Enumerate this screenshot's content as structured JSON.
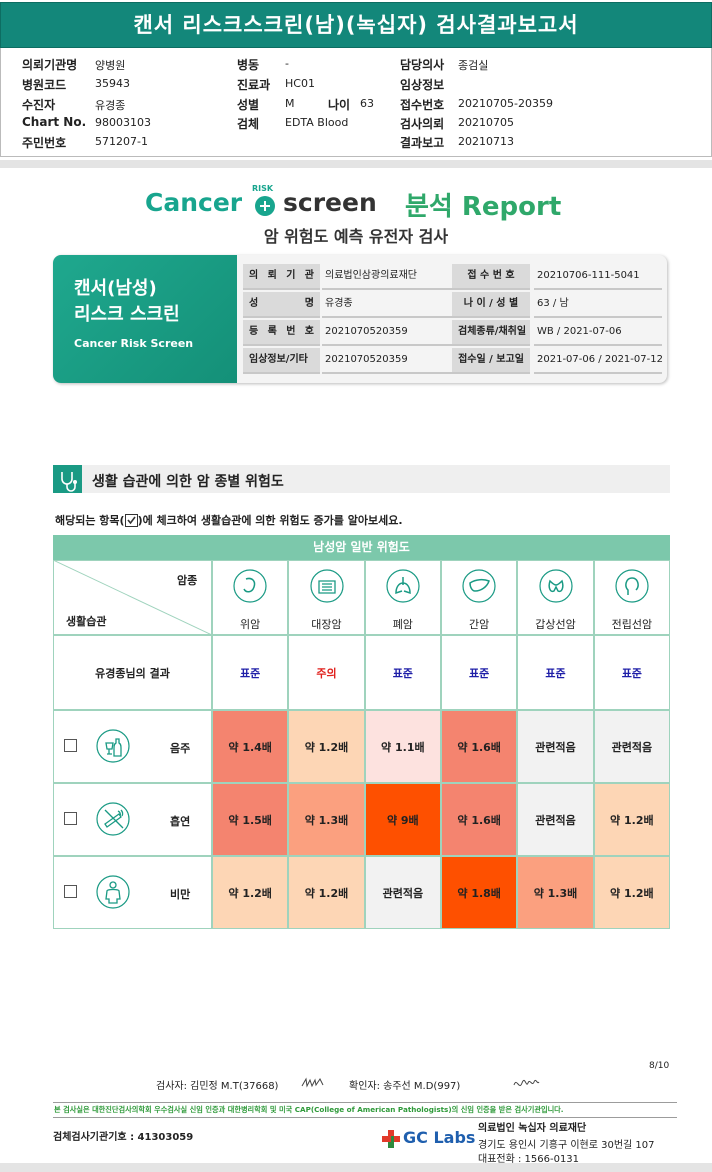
{
  "header": {
    "title": "캔서 리스크스크린(남)(녹십자) 검사결과보고서"
  },
  "patient_info": {
    "columns": [
      [
        {
          "label": "의뢰기관명",
          "value": "양병원"
        },
        {
          "label": "병원코드",
          "value": "35943"
        },
        {
          "label": "수진자",
          "value": "유경종"
        },
        {
          "label": "Chart No.",
          "value": "98003103"
        },
        {
          "label": "주민번호",
          "value": "571207-1"
        }
      ],
      [
        {
          "label": "병동",
          "value": "-"
        },
        {
          "label": "진료과",
          "value": "HC01"
        },
        {
          "label": "성별",
          "value": "M"
        },
        {
          "label": "나이",
          "value": "63"
        },
        {
          "label": "검체",
          "value": "EDTA Blood"
        }
      ],
      [
        {
          "label": "담당의사",
          "value": "종검실"
        },
        {
          "label": "임상정보"
        },
        {
          "label": "접수번호",
          "value": "20210705-20359"
        },
        {
          "label": "검사의뢰",
          "value": "20210705"
        },
        {
          "label": "결과보고",
          "value": "20210713"
        }
      ]
    ]
  },
  "logo": {
    "cancer": "Cancer",
    "risk": "RISK",
    "screen": "screen",
    "report": "분석 Report",
    "subtitle": "암 위험도 예측 유전자 검사"
  },
  "card": {
    "title_lines": [
      "캔서(남성)",
      "리스크 스크린"
    ],
    "english": "Cancer Risk Screen",
    "rows": [
      [
        "의 뢰 기 관",
        "의료법인삼광의료재단",
        "접 수 번 호",
        "20210706-111-5041"
      ],
      [
        "성 명",
        "유경종",
        "나 이 / 성 별",
        "63 / 남"
      ],
      [
        "등 록 번 호",
        "2021070520359",
        "검체종류/채취일",
        "WB / 2021-07-06"
      ],
      [
        "임상정보/기타",
        "2021070520359",
        "접수일 / 보고일",
        "2021-07-06 / 2021-07-12"
      ]
    ]
  },
  "section": {
    "title": "생활 습관에 의한 암 종별 위험도",
    "instruction_before": "해당되는 항목(",
    "instruction_after": ")에 체크하여 생활습관에 의한 위험도 증가를 알아보세요."
  },
  "risk_table": {
    "title": "남성암 일반 위험도",
    "corner_top": "암종",
    "corner_bottom": "생활습관",
    "cancers": [
      "위암",
      "대장암",
      "폐암",
      "간암",
      "갑상선암",
      "전립선암"
    ],
    "result_label": "유경종님의 결과",
    "results": [
      {
        "text": "표준",
        "color": "#1f1fa8"
      },
      {
        "text": "주의",
        "color": "#e0201c"
      },
      {
        "text": "표준",
        "color": "#1f1fa8"
      },
      {
        "text": "표준",
        "color": "#1f1fa8"
      },
      {
        "text": "표준",
        "color": "#1f1fa8"
      },
      {
        "text": "표준",
        "color": "#1f1fa8"
      }
    ],
    "rows": [
      {
        "habit": "음주",
        "cells": [
          {
            "text": "약 1.4배",
            "color": "#f4846f"
          },
          {
            "text": "약 1.2배",
            "color": "#fdd6b5"
          },
          {
            "text": "약 1.1배",
            "color": "#fde2df"
          },
          {
            "text": "약 1.6배",
            "color": "#f4846f"
          },
          {
            "text": "관련적음",
            "color": "#f2f2f2"
          },
          {
            "text": "관련적음",
            "color": "#f2f2f2"
          }
        ]
      },
      {
        "habit": "흡연",
        "cells": [
          {
            "text": "약 1.5배",
            "color": "#f4846f"
          },
          {
            "text": "약 1.3배",
            "color": "#fba07f"
          },
          {
            "text": "약 9배",
            "color": "#fe5000"
          },
          {
            "text": "약 1.6배",
            "color": "#f4846f"
          },
          {
            "text": "관련적음",
            "color": "#f2f2f2"
          },
          {
            "text": "약 1.2배",
            "color": "#fdd6b5"
          }
        ]
      },
      {
        "habit": "비만",
        "cells": [
          {
            "text": "약 1.2배",
            "color": "#fdd6b5"
          },
          {
            "text": "약 1.2배",
            "color": "#fdd6b5"
          },
          {
            "text": "관련적음",
            "color": "#f2f2f2"
          },
          {
            "text": "약 1.8배",
            "color": "#fe5000"
          },
          {
            "text": "약 1.3배",
            "color": "#fba07f"
          },
          {
            "text": "약 1.2배",
            "color": "#fdd6b5"
          }
        ]
      }
    ]
  },
  "footer": {
    "page": "8/10",
    "inspector": "검사자: 김민정 M.T(37668)",
    "confirmer": "확인자: 송주선 M.D(997)",
    "notice": "본 검사실은 대한진단검사의학회 우수검사실 신임 인증과 대한병리학회 및 미국 CAP(College of American Pathologists)의 신임 인증을 받은 검사기관입니다.",
    "institution_code": "검체검사기관기호 : 41303059",
    "brand": "GC Labs",
    "org": "의료법인 녹십자 의료재단",
    "address": "경기도 용인시 기흥구 이현로 30번길 107",
    "phone": "대표전화 : 1566-0131"
  }
}
